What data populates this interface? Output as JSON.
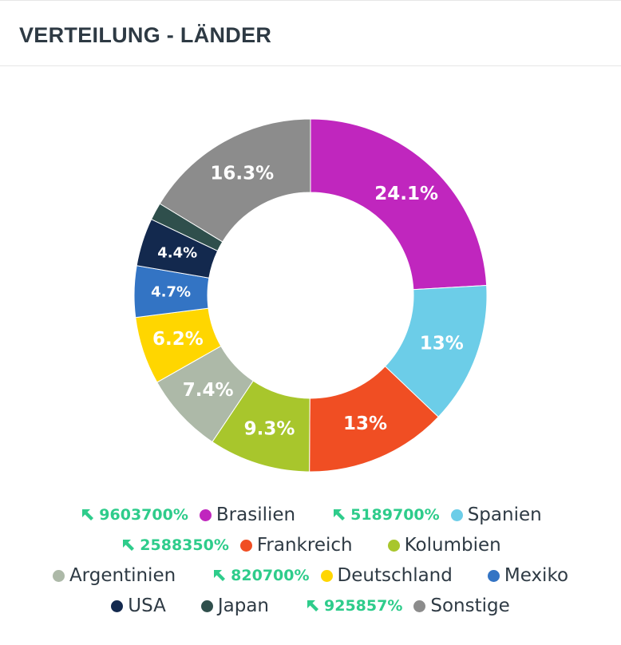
{
  "header": {
    "title": "VERTEILUNG - LÄNDER"
  },
  "chart_data": {
    "type": "pie",
    "title": "VERTEILUNG - LÄNDER",
    "categories": [
      "Brasilien",
      "Spanien",
      "Frankreich",
      "Kolumbien",
      "Argentinien",
      "Deutschland",
      "Mexiko",
      "USA",
      "Japan",
      "Sonstige"
    ],
    "values": [
      24.1,
      13,
      13,
      9.3,
      7.4,
      6.2,
      4.7,
      4.4,
      1.6,
      16.3
    ],
    "data_labels": [
      "24.1%",
      "13%",
      "13%",
      "9.3%",
      "7.4%",
      "6.2%",
      "4.7%",
      "4.4%",
      "",
      "16.3%"
    ],
    "colors": [
      "#c026be",
      "#6ccde8",
      "#f04e23",
      "#a8c62c",
      "#adb9a8",
      "#ffd600",
      "#3374c4",
      "#13294e",
      "#2f4f4c",
      "#8c8c8c"
    ],
    "legend_position": "bottom"
  },
  "legend": {
    "rows": [
      [
        {
          "trend": "9603700%",
          "label": "Brasilien",
          "color": "#c026be"
        },
        {
          "trend": "5189700%",
          "label": "Spanien",
          "color": "#6ccde8"
        }
      ],
      [
        {
          "trend": "2588350%",
          "label": "Frankreich",
          "color": "#f04e23"
        },
        {
          "label": "Kolumbien",
          "color": "#a8c62c"
        }
      ],
      [
        {
          "label": "Argentinien",
          "color": "#adb9a8"
        },
        {
          "trend": "820700%",
          "label": "Deutschland",
          "color": "#ffd600"
        },
        {
          "label": "Mexiko",
          "color": "#3374c4"
        }
      ],
      [
        {
          "label": "USA",
          "color": "#13294e"
        },
        {
          "label": "Japan",
          "color": "#2f4f4c"
        },
        {
          "trend": "925857%",
          "label": "Sonstige",
          "color": "#8c8c8c"
        }
      ]
    ],
    "trend_color": "#2ecc8b",
    "trend_icon": "arrow-up-left-icon"
  }
}
